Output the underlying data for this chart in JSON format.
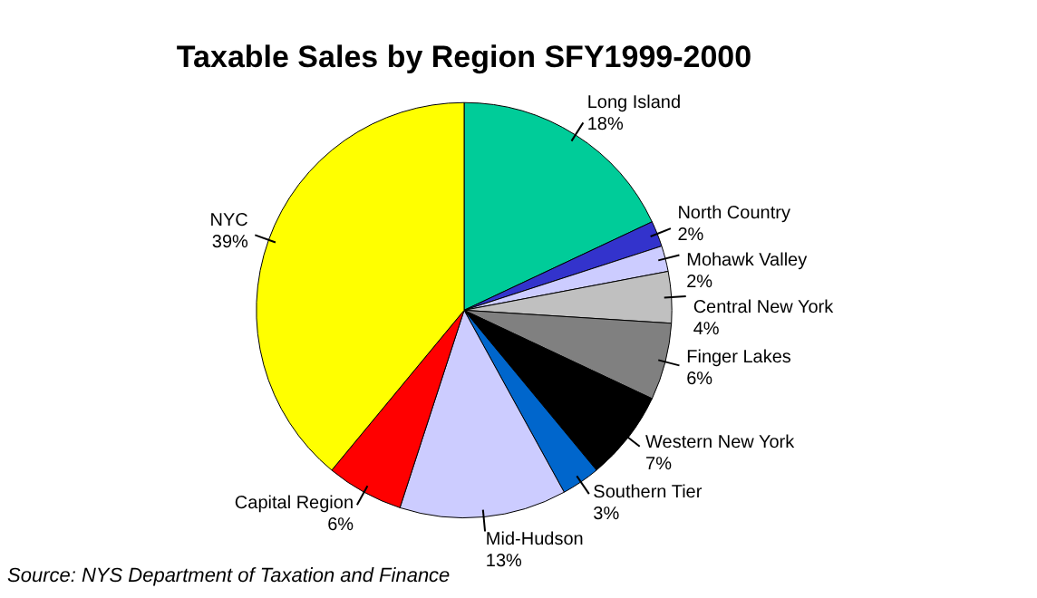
{
  "chart_data": {
    "type": "pie",
    "title": "Taxable Sales by Region SFY1999-2000",
    "categories": [
      "Long Island",
      "North Country",
      "Mohawk Valley",
      "Central New York",
      "Finger Lakes",
      "Western New York",
      "Southern Tier",
      "Mid-Hudson",
      "Capital Region",
      "NYC"
    ],
    "values": [
      18,
      2,
      2,
      4,
      6,
      7,
      3,
      13,
      6,
      39
    ],
    "value_labels": [
      "18%",
      "2%",
      "2%",
      "4%",
      "6%",
      "7%",
      "3%",
      "13%",
      "6%",
      "39%"
    ],
    "colors": [
      "#00cc99",
      "#3333cc",
      "#ccccff",
      "#c0c0c0",
      "#808080",
      "#000000",
      "#0066cc",
      "#ccccff",
      "#ff0000",
      "#ffff00"
    ],
    "legend": false,
    "annotations": [
      "Source: NYS Department of Taxation and Finance"
    ]
  }
}
